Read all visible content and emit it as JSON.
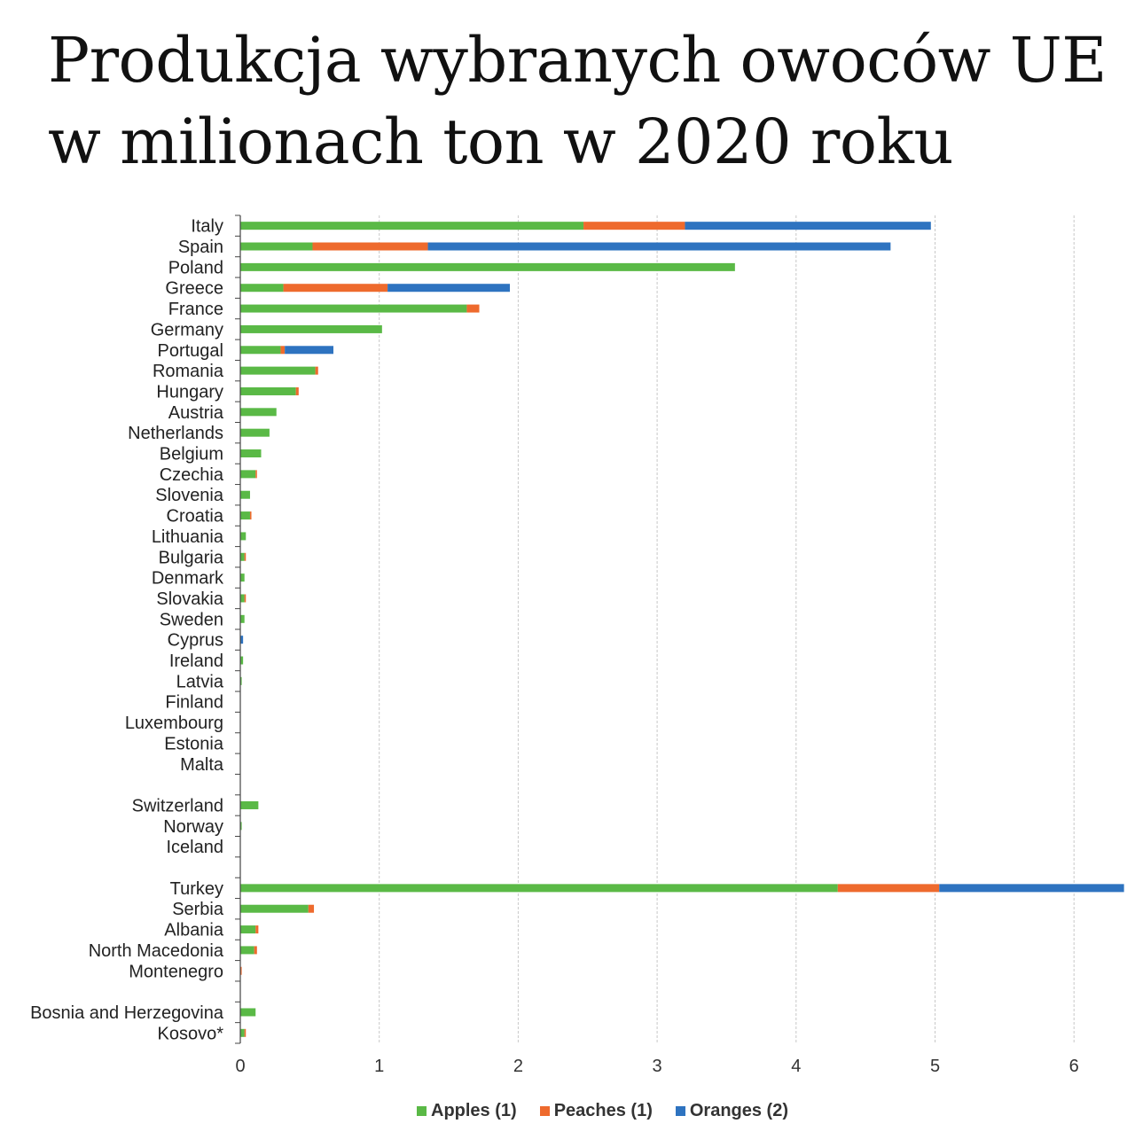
{
  "title": {
    "line1": "Produkcja wybranych owoców UE",
    "line2": "w milionach ton w 2020 roku"
  },
  "chart_data": {
    "type": "bar",
    "orientation": "horizontal",
    "stacked": true,
    "categories": [
      "Italy",
      "Spain",
      "Poland",
      "Greece",
      "France",
      "Germany",
      "Portugal",
      "Romania",
      "Hungary",
      "Austria",
      "Netherlands",
      "Belgium",
      "Czechia",
      "Slovenia",
      "Croatia",
      "Lithuania",
      "Bulgaria",
      "Denmark",
      "Slovakia",
      "Sweden",
      "Cyprus",
      "Ireland",
      "Latvia",
      "Finland",
      "Luxembourg",
      "Estonia",
      "Malta",
      "",
      "Switzerland",
      "Norway",
      "Iceland",
      "",
      "Turkey",
      "Serbia",
      "Albania",
      "North Macedonia",
      "Montenegro",
      "",
      "Bosnia and Herzegovina",
      "Kosovo*"
    ],
    "series": [
      {
        "name": "Apples (1)",
        "color": "#5ab946",
        "values": [
          2.47,
          0.52,
          3.56,
          0.31,
          1.63,
          1.02,
          0.29,
          0.54,
          0.4,
          0.26,
          0.21,
          0.15,
          0.11,
          0.07,
          0.07,
          0.04,
          0.03,
          0.03,
          0.03,
          0.03,
          0.0,
          0.02,
          0.01,
          0.0,
          0.0,
          0.0,
          0.0,
          null,
          0.13,
          0.01,
          0.0,
          null,
          4.3,
          0.49,
          0.11,
          0.1,
          0.0,
          null,
          0.11,
          0.03
        ]
      },
      {
        "name": "Peaches (1)",
        "color": "#ee6a2d",
        "values": [
          0.73,
          0.83,
          0.0,
          0.75,
          0.09,
          0.0,
          0.03,
          0.02,
          0.02,
          0.0,
          0.0,
          0.0,
          0.01,
          0.0,
          0.01,
          0.0,
          0.01,
          0.0,
          0.01,
          0.0,
          0.0,
          0.0,
          0.0,
          0.0,
          0.0,
          0.0,
          0.0,
          null,
          0.0,
          0.0,
          0.0,
          null,
          0.73,
          0.04,
          0.02,
          0.02,
          0.01,
          null,
          0.0,
          0.01
        ]
      },
      {
        "name": "Oranges (2)",
        "color": "#2e73c0",
        "values": [
          1.77,
          3.33,
          0.0,
          0.88,
          0.0,
          0.0,
          0.35,
          0.0,
          0.0,
          0.0,
          0.0,
          0.0,
          0.0,
          0.0,
          0.0,
          0.0,
          0.0,
          0.0,
          0.0,
          0.0,
          0.02,
          0.0,
          0.0,
          0.0,
          0.0,
          0.0,
          0.0,
          null,
          0.0,
          0.0,
          0.0,
          null,
          1.33,
          0.0,
          0.0,
          0.0,
          0.0,
          null,
          0.0,
          0.0
        ]
      }
    ],
    "xticks": [
      "0",
      "1",
      "2",
      "3",
      "4",
      "5",
      "6"
    ],
    "xlim": [
      0,
      6.35
    ],
    "grid": "vertical dashed",
    "legend_position": "bottom"
  }
}
